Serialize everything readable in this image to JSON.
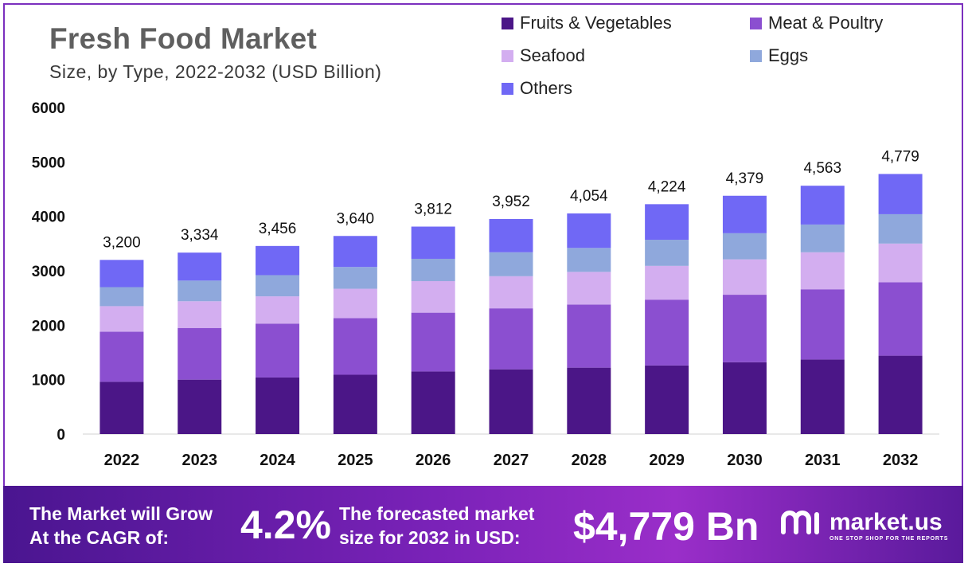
{
  "chart_data": {
    "type": "stacked-bar",
    "title": "Fresh Food Market",
    "subtitle": "Size, by Type, 2022-2032 (USD Billion)",
    "xlabel": "",
    "ylabel": "",
    "ylim": [
      0,
      6000
    ],
    "yticks": [
      "0",
      "1000",
      "2000",
      "3000",
      "4000",
      "5000",
      "6000"
    ],
    "categories": [
      "2022",
      "2023",
      "2024",
      "2025",
      "2026",
      "2027",
      "2028",
      "2029",
      "2030",
      "2031",
      "2032"
    ],
    "series": [
      {
        "name": "Fruits & Vegetables",
        "color": "#4b1687",
        "values": [
          960,
          1000,
          1040,
          1090,
          1150,
          1190,
          1220,
          1260,
          1320,
          1370,
          1440
        ]
      },
      {
        "name": "Meat & Poultry",
        "color": "#8b4fd0",
        "values": [
          920,
          950,
          990,
          1040,
          1080,
          1120,
          1160,
          1210,
          1240,
          1290,
          1350
        ]
      },
      {
        "name": "Seafood",
        "color": "#d3aef0",
        "values": [
          470,
          490,
          500,
          540,
          580,
          590,
          600,
          620,
          650,
          680,
          710
        ]
      },
      {
        "name": "Eggs",
        "color": "#8fa8dc",
        "values": [
          350,
          380,
          390,
          400,
          410,
          440,
          440,
          480,
          480,
          510,
          540
        ]
      },
      {
        "name": "Others",
        "color": "#7068f5",
        "values": [
          500,
          514,
          536,
          570,
          592,
          612,
          634,
          654,
          689,
          713,
          739
        ]
      }
    ],
    "totals": [
      3200,
      3334,
      3456,
      3640,
      3812,
      3952,
      4054,
      4224,
      4379,
      4563,
      4779
    ],
    "total_labels": [
      "3,200",
      "3,334",
      "3,456",
      "3,640",
      "3,812",
      "3,952",
      "4,054",
      "4,224",
      "4,379",
      "4,563",
      "4,779"
    ],
    "legend_position": "top-right",
    "grid": false
  },
  "banner": {
    "cagr_label_line1": "The Market will Grow",
    "cagr_label_line2": "At the CAGR of:",
    "cagr_value": "4.2%",
    "forecast_label_line1": "The forecasted market",
    "forecast_label_line2": "size for 2032 in USD:",
    "forecast_value": "$4,779 Bn",
    "brand_name": "market.us",
    "brand_tagline": "ONE STOP SHOP FOR THE REPORTS",
    "background_color": "#7a22b8"
  }
}
